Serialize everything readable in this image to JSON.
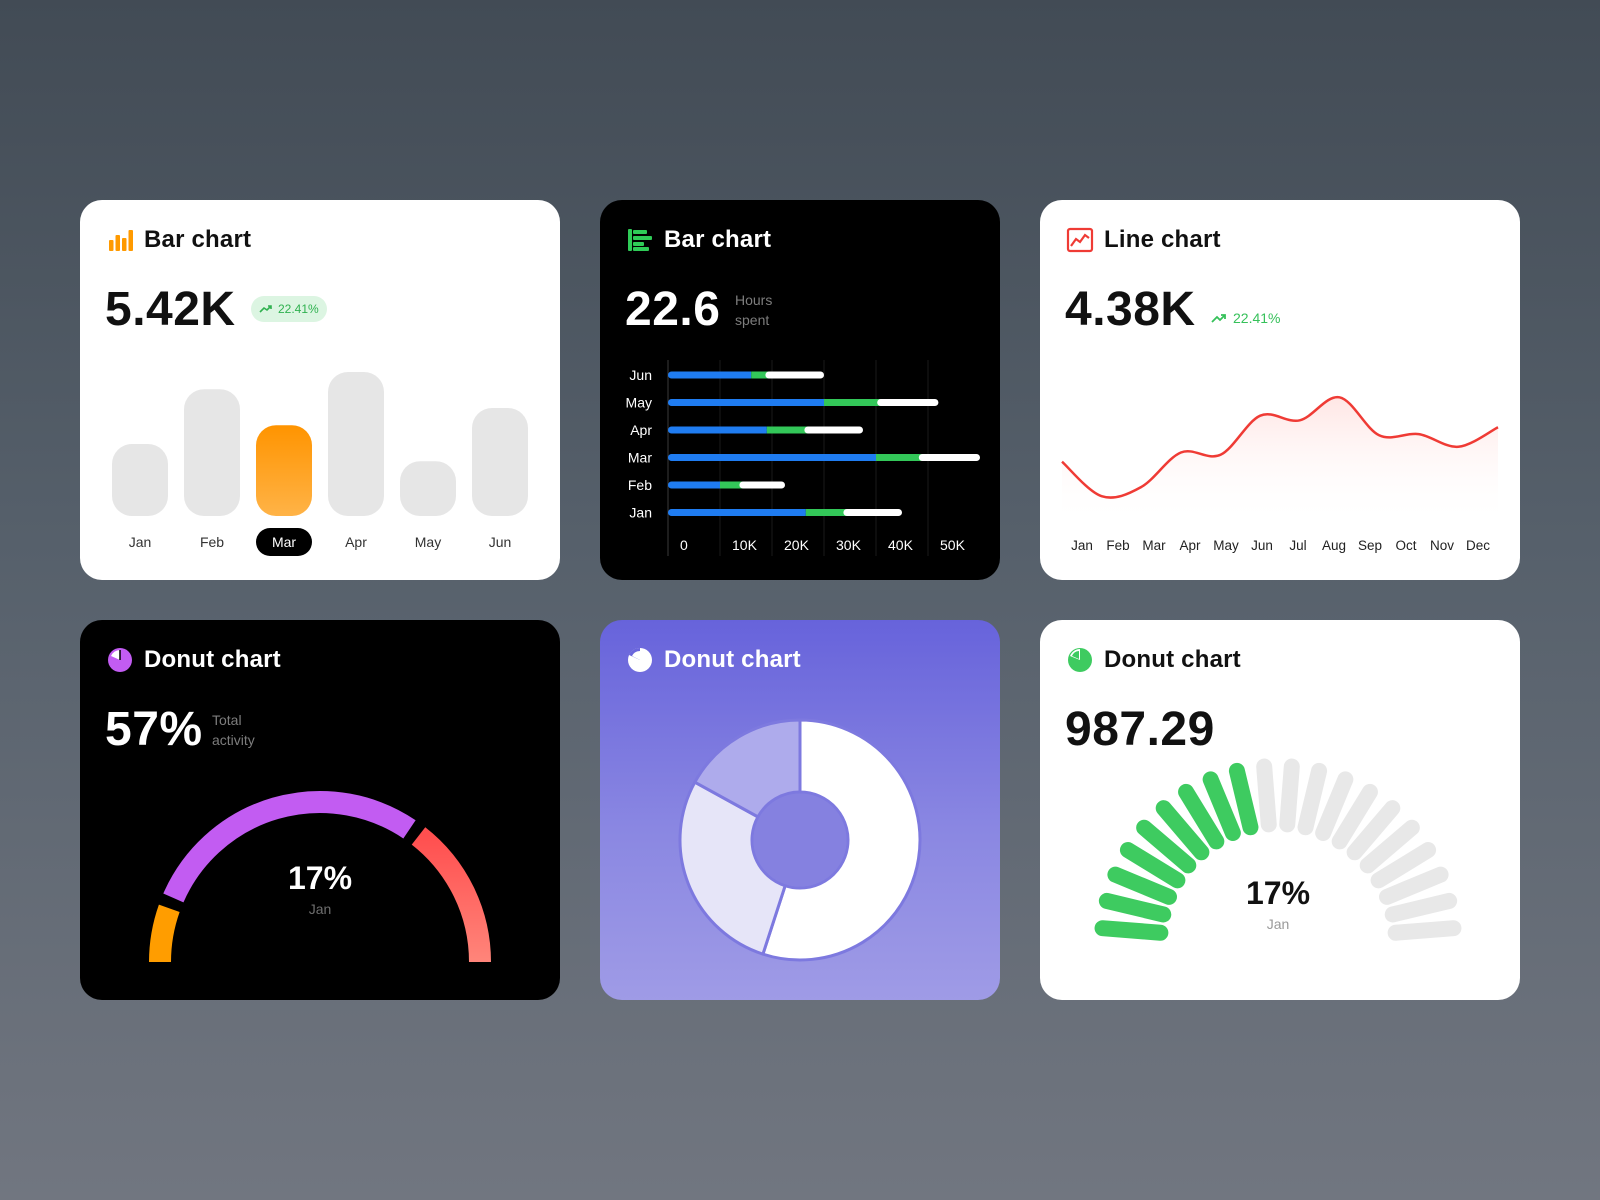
{
  "cards": {
    "bar1": {
      "title": "Bar chart",
      "value": "5.42K",
      "badge": "22.41%",
      "icon": "bar-chart-icon",
      "accent": "#ff9a00"
    },
    "bar2": {
      "title": "Bar chart",
      "value": "22.6",
      "unit_line1": "Hours",
      "unit_line2": "spent",
      "icon": "horizontal-bar-chart-icon",
      "accent": "#2fcb57"
    },
    "line": {
      "title": "Line chart",
      "value": "4.38K",
      "trend": "22.41%",
      "icon": "line-chart-icon",
      "accent": "#ef3b35"
    },
    "donut1": {
      "title": "Donut chart",
      "value": "57%",
      "unit_line1": "Total",
      "unit_line2": "activity",
      "center_value": "17%",
      "center_label": "Jan",
      "icon": "pie-chart-icon",
      "accent": "#c25cf2"
    },
    "donut2": {
      "title": "Donut chart",
      "icon": "pie-chart-icon"
    },
    "donut3": {
      "title": "Donut chart",
      "value": "987.29",
      "center_value": "17%",
      "center_label": "Jan",
      "icon": "pie-chart-icon",
      "accent": "#3ecb60"
    }
  },
  "chart_data": [
    {
      "type": "bar",
      "categories": [
        "Jan",
        "Feb",
        "Mar",
        "Apr",
        "May",
        "Jun"
      ],
      "values": [
        0.5,
        0.88,
        0.63,
        1.0,
        0.38,
        0.75
      ],
      "highlighted": "Mar",
      "colors": {
        "bar": "#e6e6e6",
        "highlight": "#ff9a00"
      }
    },
    {
      "type": "bar",
      "orientation": "horizontal",
      "stacked": true,
      "categories": [
        "Jun",
        "May",
        "Apr",
        "Mar",
        "Feb",
        "Jan"
      ],
      "xticks": [
        "0",
        "10K",
        "20K",
        "30K",
        "40K",
        "50K"
      ],
      "xlim": [
        0,
        60000
      ],
      "series": [
        {
          "color": "#1f7cf1",
          "values": [
            16000,
            30000,
            19000,
            40000,
            10000,
            26500
          ]
        },
        {
          "color": "#33c759",
          "values": [
            3500,
            11000,
            8000,
            9000,
            4500,
            8000
          ]
        },
        {
          "color": "#ffffff",
          "values": [
            10500,
            11000,
            10500,
            11000,
            8000,
            10500
          ]
        }
      ]
    },
    {
      "type": "line",
      "categories": [
        "Jan",
        "Feb",
        "Mar",
        "Apr",
        "May",
        "Jun",
        "Jul",
        "Aug",
        "Sep",
        "Oct",
        "Nov",
        "Dec"
      ],
      "values": [
        0.42,
        0.12,
        0.2,
        0.5,
        0.48,
        0.82,
        0.78,
        0.98,
        0.65,
        0.66,
        0.55,
        0.72
      ],
      "color": "#ef3b35"
    },
    {
      "type": "pie",
      "style": "gauge",
      "segments": [
        {
          "value": 12,
          "color": "#ff9d00"
        },
        {
          "value": 58,
          "color": "#c25cf2"
        },
        {
          "value": 30,
          "color": "#ff6457"
        }
      ]
    },
    {
      "type": "pie",
      "style": "donut",
      "segments": [
        {
          "value": 55,
          "color": "#ffffff"
        },
        {
          "value": 28,
          "color": "#e6e5f8"
        },
        {
          "value": 17,
          "color": "#aeabec"
        }
      ]
    },
    {
      "type": "pie",
      "style": "segmented-gauge",
      "total_segments": 20,
      "filled_segments": 9,
      "colors": {
        "filled": "#3ecb60",
        "empty": "#e8e8e8"
      }
    }
  ]
}
